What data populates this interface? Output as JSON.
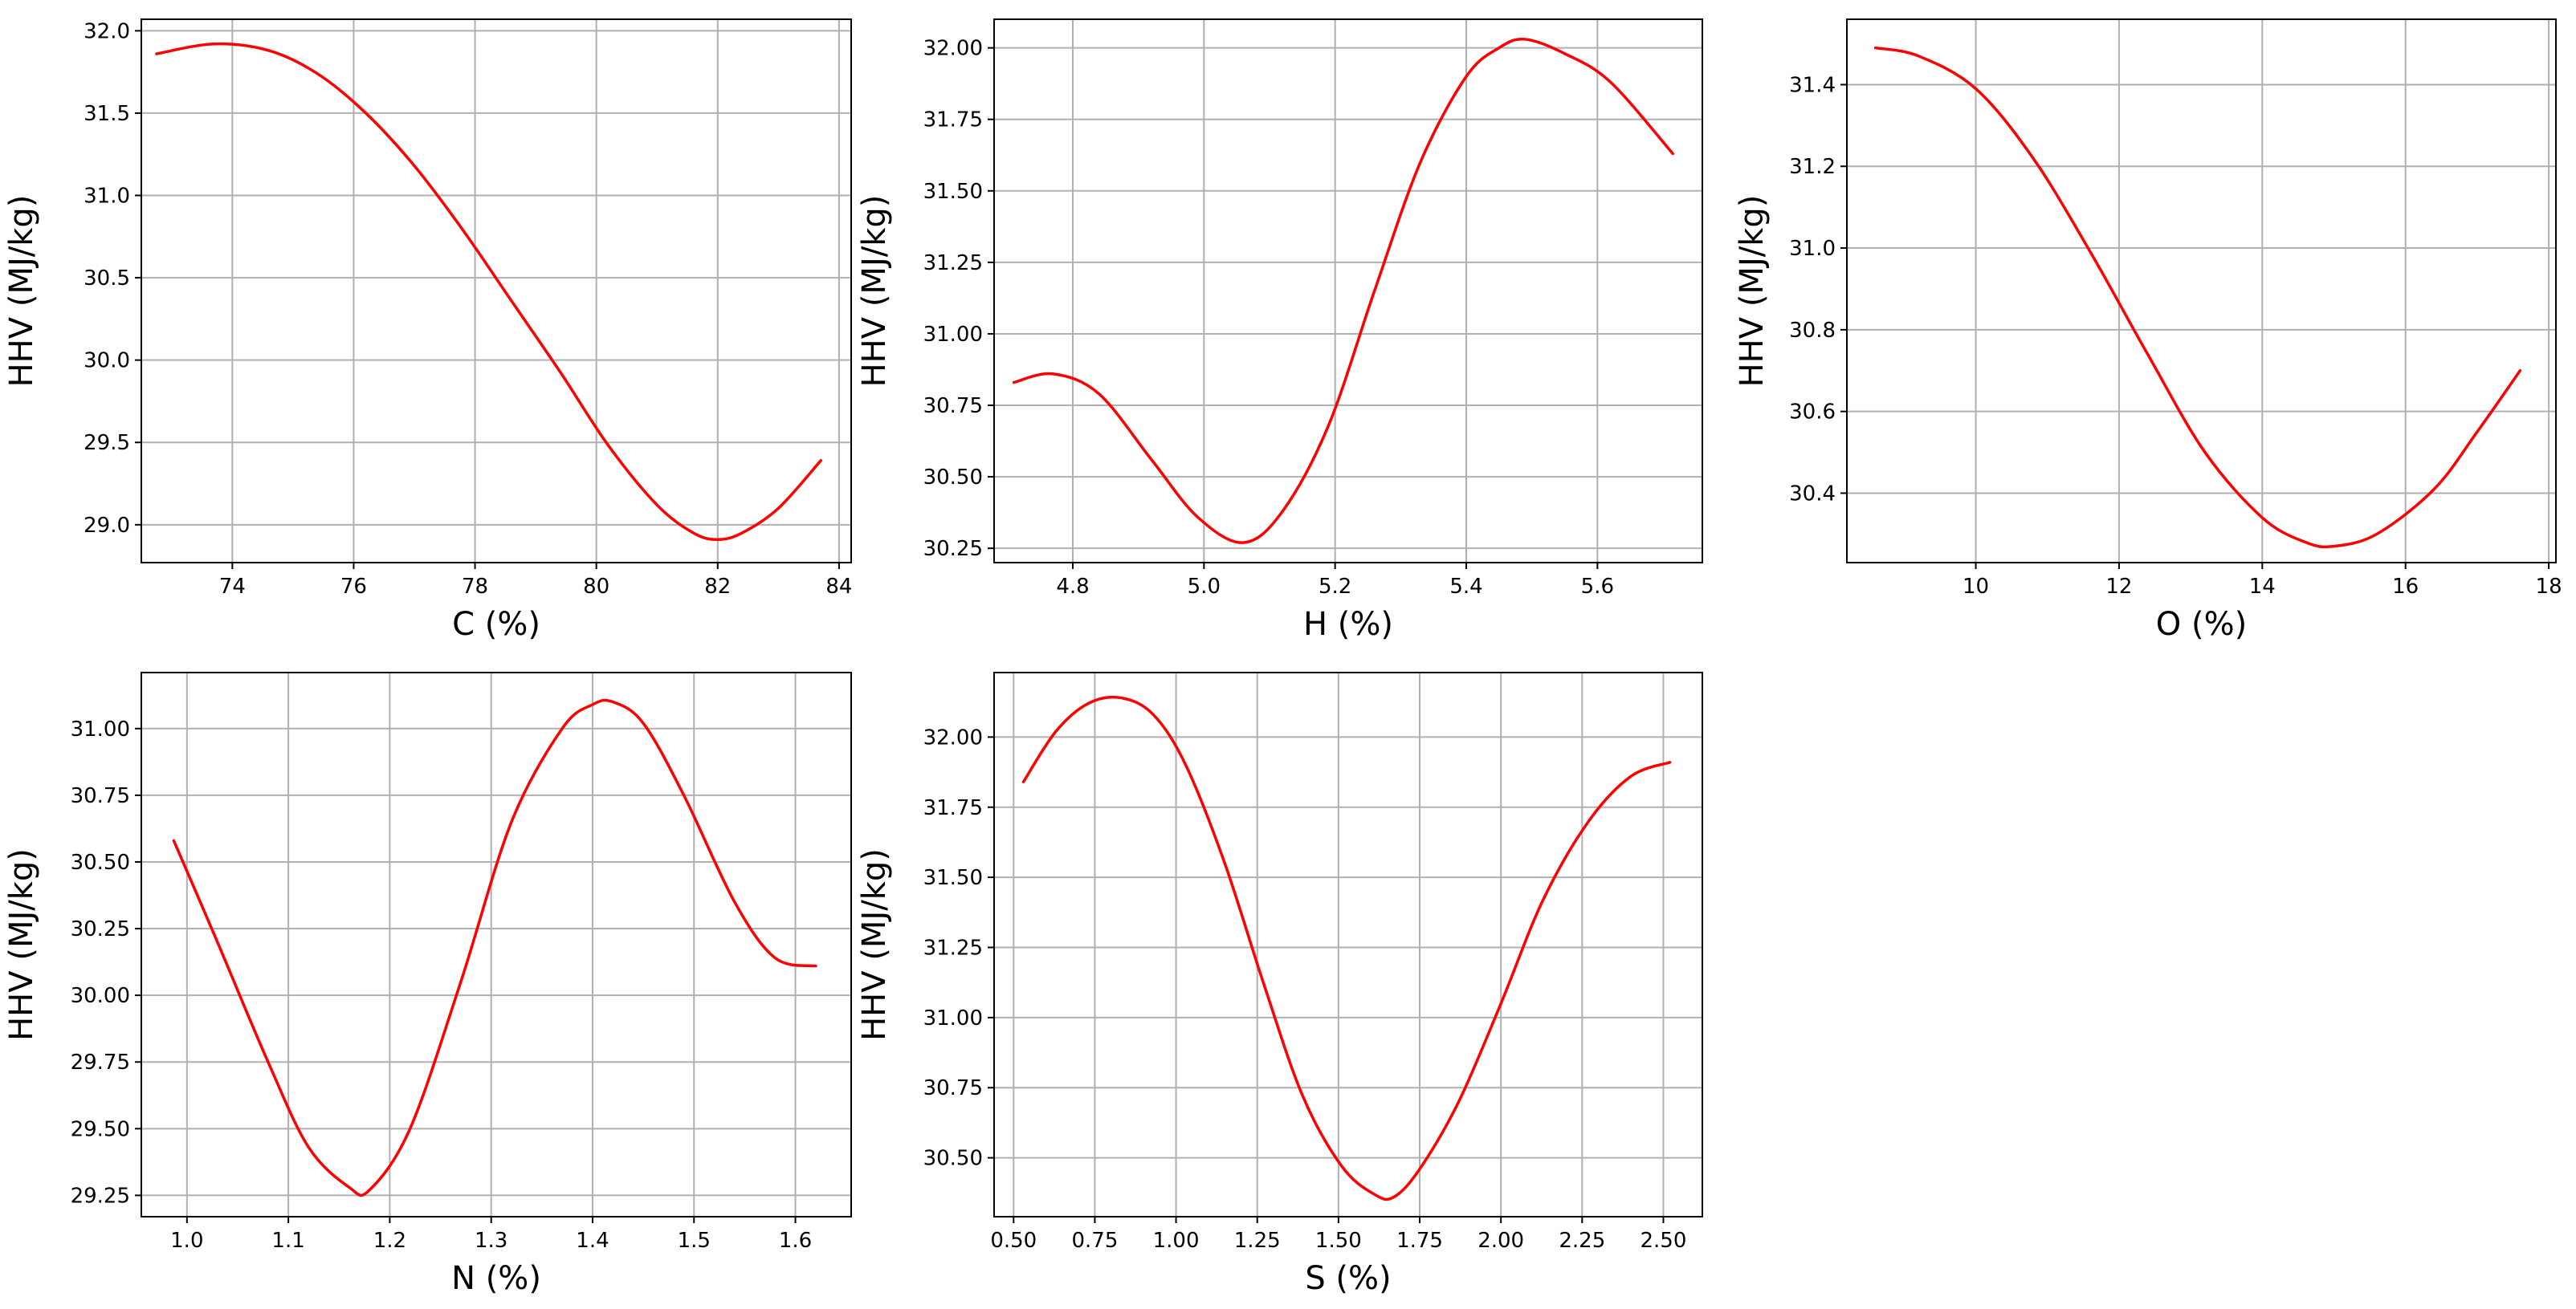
{
  "colors": {
    "curve": "#ff0000",
    "grid": "#b0b0b0",
    "frame": "#000000"
  },
  "chart_data": [
    {
      "type": "line",
      "xlabel": "C (%)",
      "ylabel": "HHV (MJ/kg)",
      "grid": true,
      "xlim": [
        72.5,
        84.2
      ],
      "ylim": [
        28.77,
        32.07
      ],
      "xticks": [
        74,
        76,
        78,
        80,
        82,
        84
      ],
      "xtick_labels": [
        "74",
        "76",
        "78",
        "80",
        "82",
        "84"
      ],
      "yticks": [
        29.0,
        29.5,
        30.0,
        30.5,
        31.0,
        31.5,
        32.0
      ],
      "ytick_labels": [
        "29.0",
        "29.5",
        "30.0",
        "30.5",
        "31.0",
        "31.5",
        "32.0"
      ],
      "series": [
        {
          "x": [
            72.75,
            73.7,
            74.6,
            75.4,
            76.2,
            77.0,
            77.8,
            78.6,
            79.4,
            80.2,
            81.0,
            81.6,
            82.0,
            82.4,
            83.0,
            83.7
          ],
          "values": [
            31.86,
            31.92,
            31.88,
            31.74,
            31.5,
            31.18,
            30.79,
            30.36,
            29.93,
            29.48,
            29.12,
            28.95,
            28.91,
            28.95,
            29.1,
            29.39
          ]
        }
      ]
    },
    {
      "type": "line",
      "xlabel": "H (%)",
      "ylabel": "HHV (MJ/kg)",
      "grid": true,
      "xlim": [
        4.68,
        5.76
      ],
      "ylim": [
        30.2,
        32.1
      ],
      "xticks": [
        4.8,
        5.0,
        5.2,
        5.4,
        5.6
      ],
      "xtick_labels": [
        "4.8",
        "5.0",
        "5.2",
        "5.4",
        "5.6"
      ],
      "yticks": [
        30.25,
        30.5,
        30.75,
        31.0,
        31.25,
        31.5,
        31.75,
        32.0
      ],
      "ytick_labels": [
        "30.25",
        "30.50",
        "30.75",
        "31.00",
        "31.25",
        "31.50",
        "31.75",
        "32.00"
      ],
      "series": [
        {
          "x": [
            4.71,
            4.77,
            4.84,
            4.92,
            4.99,
            5.06,
            5.12,
            5.19,
            5.26,
            5.33,
            5.4,
            5.45,
            5.49,
            5.55,
            5.62,
            5.715
          ],
          "values": [
            30.83,
            30.86,
            30.79,
            30.56,
            30.36,
            30.27,
            30.38,
            30.68,
            31.15,
            31.6,
            31.9,
            32.0,
            32.03,
            31.98,
            31.88,
            31.63
          ]
        }
      ]
    },
    {
      "type": "line",
      "xlabel": "O (%)",
      "ylabel": "HHV (MJ/kg)",
      "grid": true,
      "xlim": [
        8.2,
        18.1
      ],
      "ylim": [
        30.23,
        31.56
      ],
      "xticks": [
        10,
        12,
        14,
        16,
        18
      ],
      "xtick_labels": [
        "10",
        "12",
        "14",
        "16",
        "18"
      ],
      "yticks": [
        30.4,
        30.6,
        30.8,
        31.0,
        31.2,
        31.4
      ],
      "ytick_labels": [
        "30.4",
        "30.6",
        "30.8",
        "31.0",
        "31.2",
        "31.4"
      ],
      "series": [
        {
          "x": [
            8.6,
            9.2,
            10.0,
            10.8,
            11.6,
            12.4,
            13.2,
            14.0,
            14.6,
            15.0,
            15.6,
            16.4,
            17.0,
            17.6
          ],
          "values": [
            31.49,
            31.47,
            31.39,
            31.22,
            30.99,
            30.74,
            30.5,
            30.34,
            30.28,
            30.27,
            30.3,
            30.41,
            30.55,
            30.7
          ]
        }
      ]
    },
    {
      "type": "line",
      "xlabel": "N (%)",
      "ylabel": "HHV (MJ/kg)",
      "grid": true,
      "xlim": [
        0.955,
        1.655
      ],
      "ylim": [
        29.17,
        31.21
      ],
      "xticks": [
        1.0,
        1.1,
        1.2,
        1.3,
        1.4,
        1.5,
        1.6
      ],
      "xtick_labels": [
        "1.0",
        "1.1",
        "1.2",
        "1.3",
        "1.4",
        "1.5",
        "1.6"
      ],
      "yticks": [
        29.25,
        29.5,
        29.75,
        30.0,
        30.25,
        30.5,
        30.75,
        31.0
      ],
      "ytick_labels": [
        "29.25",
        "29.50",
        "29.75",
        "30.00",
        "30.25",
        "30.50",
        "30.75",
        "31.00"
      ],
      "series": [
        {
          "x": [
            0.987,
            1.03,
            1.08,
            1.12,
            1.16,
            1.18,
            1.22,
            1.27,
            1.32,
            1.37,
            1.4,
            1.42,
            1.45,
            1.49,
            1.54,
            1.58,
            1.62
          ],
          "values": [
            30.58,
            30.2,
            29.75,
            29.43,
            29.28,
            29.27,
            29.5,
            30.05,
            30.65,
            31.0,
            31.09,
            31.1,
            31.02,
            30.75,
            30.35,
            30.14,
            30.11
          ]
        }
      ]
    },
    {
      "type": "line",
      "xlabel": "S (%)",
      "ylabel": "HHV (MJ/kg)",
      "grid": true,
      "xlim": [
        0.44,
        2.62
      ],
      "ylim": [
        30.29,
        32.23
      ],
      "xticks": [
        0.5,
        0.75,
        1.0,
        1.25,
        1.5,
        1.75,
        2.0,
        2.25,
        2.5
      ],
      "xtick_labels": [
        "0.50",
        "0.75",
        "1.00",
        "1.25",
        "1.50",
        "1.75",
        "2.00",
        "2.25",
        "2.50"
      ],
      "yticks": [
        30.5,
        30.75,
        31.0,
        31.25,
        31.5,
        31.75,
        32.0
      ],
      "ytick_labels": [
        "30.50",
        "30.75",
        "31.00",
        "31.25",
        "31.50",
        "31.75",
        "32.00"
      ],
      "series": [
        {
          "x": [
            0.53,
            0.63,
            0.73,
            0.83,
            0.93,
            1.03,
            1.15,
            1.27,
            1.39,
            1.51,
            1.61,
            1.67,
            1.75,
            1.87,
            2.0,
            2.13,
            2.27,
            2.4,
            2.52
          ],
          "values": [
            31.84,
            32.02,
            32.12,
            32.14,
            32.08,
            31.9,
            31.55,
            31.12,
            30.72,
            30.47,
            30.37,
            30.36,
            30.46,
            30.7,
            31.05,
            31.42,
            31.7,
            31.86,
            31.91
          ]
        }
      ]
    }
  ]
}
